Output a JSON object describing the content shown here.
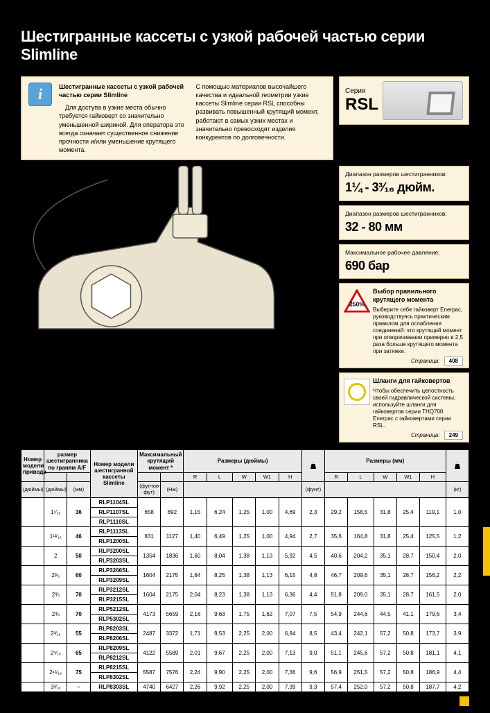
{
  "title": "Шестигранные кассеты с узкой рабочей частью серии Slimline",
  "intro": {
    "heading": "Шестигранные кассеты с узкой рабочей частью серии Slimline",
    "col1": "Для доступа в узкие места обычно требуется гайковерт со значительно уменьшенной шириной. Для оператора это всегда означает существенное снижение прочности и/или уменьшение крутящего момента.",
    "col2": "С помощью материалов высочайшего качества и идеальной геометрии узкие кассеты Slimline серии RSL способны развивать повышенный крутящий момент, работают в самых узких местах и значительно превосходят изделия конкурентов по долговечности."
  },
  "series": {
    "label": "Серия",
    "value": "RSL"
  },
  "specs": [
    {
      "label": "Диапазон размеров шестигранников:",
      "value": "1¼ - 3³⁄₁₆ дюйм."
    },
    {
      "label": "Диапазон размеров шестигранников:",
      "value": "32 - 80 мм"
    },
    {
      "label": "Максимальное рабочее давление:",
      "value": "690 бар"
    }
  ],
  "torque_tip": {
    "badge": "250%",
    "title": "Выбор правильного крутящего момента",
    "body": "Выберите себе гайковерт Enerpac, руководствуясь практическим правилом для ослабления соединений: что крутящий момент при отворачивании примерно в 2,5 раза больше крутящего момента при затяжке.",
    "page_label": "Страница:",
    "page": "408"
  },
  "hose_tip": {
    "title": "Шланги для гайковертов",
    "body": "Чтобы обеспечить целостность своей гидравлической системы, используйте шланги для гайковертов серии THQ700 Enerpac с гайковертами серии RSL.",
    "page_label": "Страница:",
    "page": "249"
  },
  "table": {
    "head": {
      "drive": "Номер модели привода",
      "hexsize": "размер шестигранника по граням A/F",
      "model": "Номер модели шестигранной кассеты Slimline",
      "torque": "Максимальный крутящий момент *",
      "dims_in": "Размеры (дюймы)",
      "dims_mm": "Размеры (мм)",
      "units": {
        "in": "(дюймы)",
        "mm": "(мм)",
        "ftlb": "(фунтов-фут)",
        "nm": "(Нм)",
        "lb": "(фунт)",
        "kg": "(кг)"
      },
      "cols": [
        "R",
        "L",
        "W",
        "W1",
        "H"
      ]
    },
    "rows": [
      {
        "hex_in": "1⁷⁄₁₆",
        "hex_mm": "36",
        "models": [
          "RLP1104SL",
          "RLP1107SL",
          "RLP1110SL"
        ],
        "t1": "658",
        "t2": "892",
        "i": [
          "1,15",
          "6,24",
          "1,25",
          "1,00",
          "4,69"
        ],
        "wlb": "2,3",
        "m": [
          "29,2",
          "158,5",
          "31,8",
          "25,4",
          "119,1"
        ],
        "wkg": "1,0"
      },
      {
        "hex_in": "1¹³⁄₁₆",
        "hex_mm": "46",
        "models": [
          "RLP1113SL",
          "RLP1200SL"
        ],
        "t1": "831",
        "t2": "1127",
        "i": [
          "1,40",
          "6,49",
          "1,25",
          "1,00",
          "4,94"
        ],
        "wlb": "2,7",
        "m": [
          "35,6",
          "164,8",
          "31,8",
          "25,4",
          "125,5"
        ],
        "wkg": "1,2"
      },
      {
        "hex_in": "2",
        "hex_mm": "50",
        "models": [
          "RLP3200SL",
          "RLP3203SL"
        ],
        "t1": "1354",
        "t2": "1836",
        "i": [
          "1,60",
          "8,04",
          "1,38",
          "1,13",
          "5,92"
        ],
        "wlb": "4,5",
        "m": [
          "40,6",
          "204,2",
          "35,1",
          "28,7",
          "150,4"
        ],
        "wkg": "2,0"
      },
      {
        "hex_in": "2³⁄₈",
        "hex_mm": "60",
        "models": [
          "RLP3206SL",
          "RLP3209SL"
        ],
        "t1": "1604",
        "t2": "2175",
        "i": [
          "1,84",
          "8,25",
          "1,38",
          "1,13",
          "6,15"
        ],
        "wlb": "4,8",
        "m": [
          "46,7",
          "209,6",
          "35,1",
          "28,7",
          "156,2"
        ],
        "wkg": "2,2"
      },
      {
        "hex_in": "2¾",
        "hex_mm": "70",
        "models": [
          "RLP3212SL",
          "RLP3215SL"
        ],
        "t1": "1604",
        "t2": "2175",
        "i": [
          "2,04",
          "8,23",
          "1,38",
          "1,13",
          "6,36"
        ],
        "wlb": "4,4",
        "m": [
          "51,8",
          "209,0",
          "35,1",
          "28,7",
          "161,5"
        ],
        "wkg": "2,0"
      },
      {
        "hex_in": "2¾",
        "hex_mm": "70",
        "models": [
          "RLP5212SL",
          "RLP5302SL"
        ],
        "t1": "4173",
        "t2": "5659",
        "i": [
          "2,16",
          "9,63",
          "1,75",
          "1,62",
          "7,07"
        ],
        "wlb": "7,5",
        "m": [
          "54,9",
          "244,6",
          "44,5",
          "41,1",
          "179,6"
        ],
        "wkg": "3,4"
      },
      {
        "hex_in": "2³⁄₁₆",
        "hex_mm": "55",
        "models": [
          "RLP8203SL",
          "RLP8206SL"
        ],
        "t1": "2487",
        "t2": "3372",
        "i": [
          "1,71",
          "9,53",
          "2,25",
          "2,00",
          "6,84"
        ],
        "wlb": "8,5",
        "m": [
          "43,4",
          "242,1",
          "57,2",
          "50,8",
          "173,7"
        ],
        "wkg": "3,9"
      },
      {
        "hex_in": "2⁹⁄₁₆",
        "hex_mm": "65",
        "models": [
          "RLP8209SL",
          "RLP8212SL"
        ],
        "t1": "4122",
        "t2": "5589",
        "i": [
          "2,01",
          "9,67",
          "2,25",
          "2,00",
          "7,13"
        ],
        "wlb": "9,0",
        "m": [
          "51,1",
          "245,6",
          "57,2",
          "50,8",
          "181,1"
        ],
        "wkg": "4,1"
      },
      {
        "hex_in": "2¹⁵⁄₁₆",
        "hex_mm": "75",
        "models": [
          "RLP8215SL",
          "RLP8302SL"
        ],
        "t1": "5587",
        "t2": "7576",
        "i": [
          "2,24",
          "9,90",
          "2,25",
          "2,00",
          "7,36"
        ],
        "wlb": "9,6",
        "m": [
          "56,9",
          "251,5",
          "57,2",
          "50,8",
          "186,9"
        ],
        "wkg": "4,4"
      },
      {
        "hex_in": "3³⁄₁₆",
        "hex_mm": "–",
        "models": [
          "RLP8303SL"
        ],
        "t1": "4740",
        "t2": "6427",
        "i": [
          "2,26",
          "9,92",
          "2,25",
          "2,00",
          "7,39"
        ],
        "wlb": "9,3",
        "m": [
          "57,4",
          "252,0",
          "57,2",
          "50,8",
          "187,7"
        ],
        "wkg": "4,2"
      }
    ]
  }
}
